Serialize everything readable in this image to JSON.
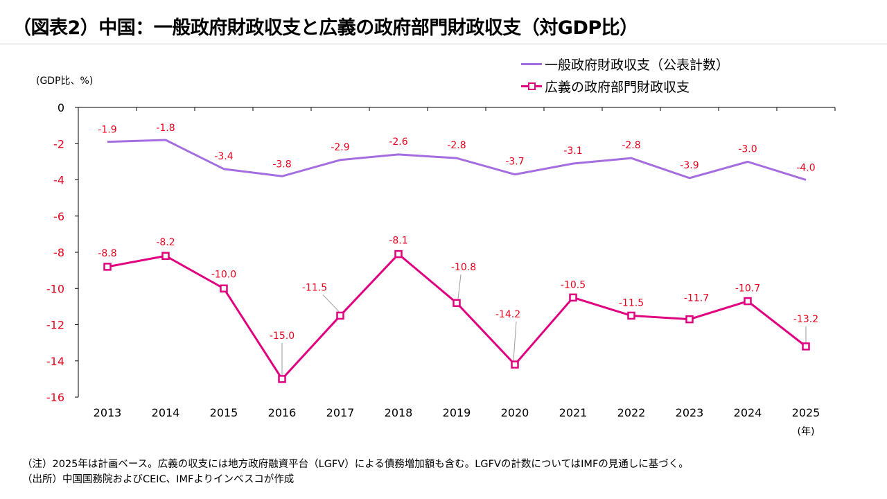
{
  "title": "（図表2）中国：一般政府財政収支と広義の政府部門財政収支（対GDP比）",
  "notes": [
    "（注）2025年は計画ベース。広義の収支には地方政府融資平台（LGFV）による債務増加額も含む。LGFVの計数についてはIMFの見通しに基づく。",
    "（出所）中国国務院およびCEIC、IMFよりインベスコが作成"
  ],
  "chart_data": {
    "type": "line",
    "title": "中国：一般政府財政収支と広義の政府部門財政収支（対GDP比）",
    "ylabel": "(GDP比、%)",
    "xlabel": "(年)",
    "categories": [
      "2013",
      "2014",
      "2015",
      "2016",
      "2017",
      "2018",
      "2019",
      "2020",
      "2021",
      "2022",
      "2023",
      "2024",
      "2025"
    ],
    "ylim": [
      -16,
      0
    ],
    "yticks": [
      0,
      -2,
      -4,
      -6,
      -8,
      -10,
      -12,
      -14,
      -16
    ],
    "yticks_color": "#e8001c",
    "label_color": "#e8001c",
    "legend_position": "top-right",
    "series": [
      {
        "name": "一般政府財政収支（公表計数）",
        "color": "#a56ee0",
        "marker": false,
        "values": [
          -1.9,
          -1.8,
          -3.4,
          -3.8,
          -2.9,
          -2.6,
          -2.8,
          -3.7,
          -3.1,
          -2.8,
          -3.9,
          -3.0,
          -4.0
        ],
        "labels": [
          "-1.9",
          "-1.8",
          "-3.4",
          "-3.8",
          "-2.9",
          "-2.6",
          "-2.8",
          "-3.7",
          "-3.1",
          "-2.8",
          "-3.9",
          "-3.0",
          "-4.0"
        ]
      },
      {
        "name": "広義の政府部門財政収支",
        "color": "#e0007f",
        "marker": true,
        "values": [
          -8.8,
          -8.2,
          -10.0,
          -15.0,
          -11.5,
          -8.1,
          -10.8,
          -14.2,
          -10.5,
          -11.5,
          -11.7,
          -10.7,
          -13.2
        ],
        "labels": [
          "-8.8",
          "-8.2",
          "-10.0",
          "-15.0",
          "-11.5",
          "-8.1",
          "-10.8",
          "-14.2",
          "-10.5",
          "-11.5",
          "-11.7",
          "-10.7",
          "-13.2"
        ]
      }
    ]
  }
}
